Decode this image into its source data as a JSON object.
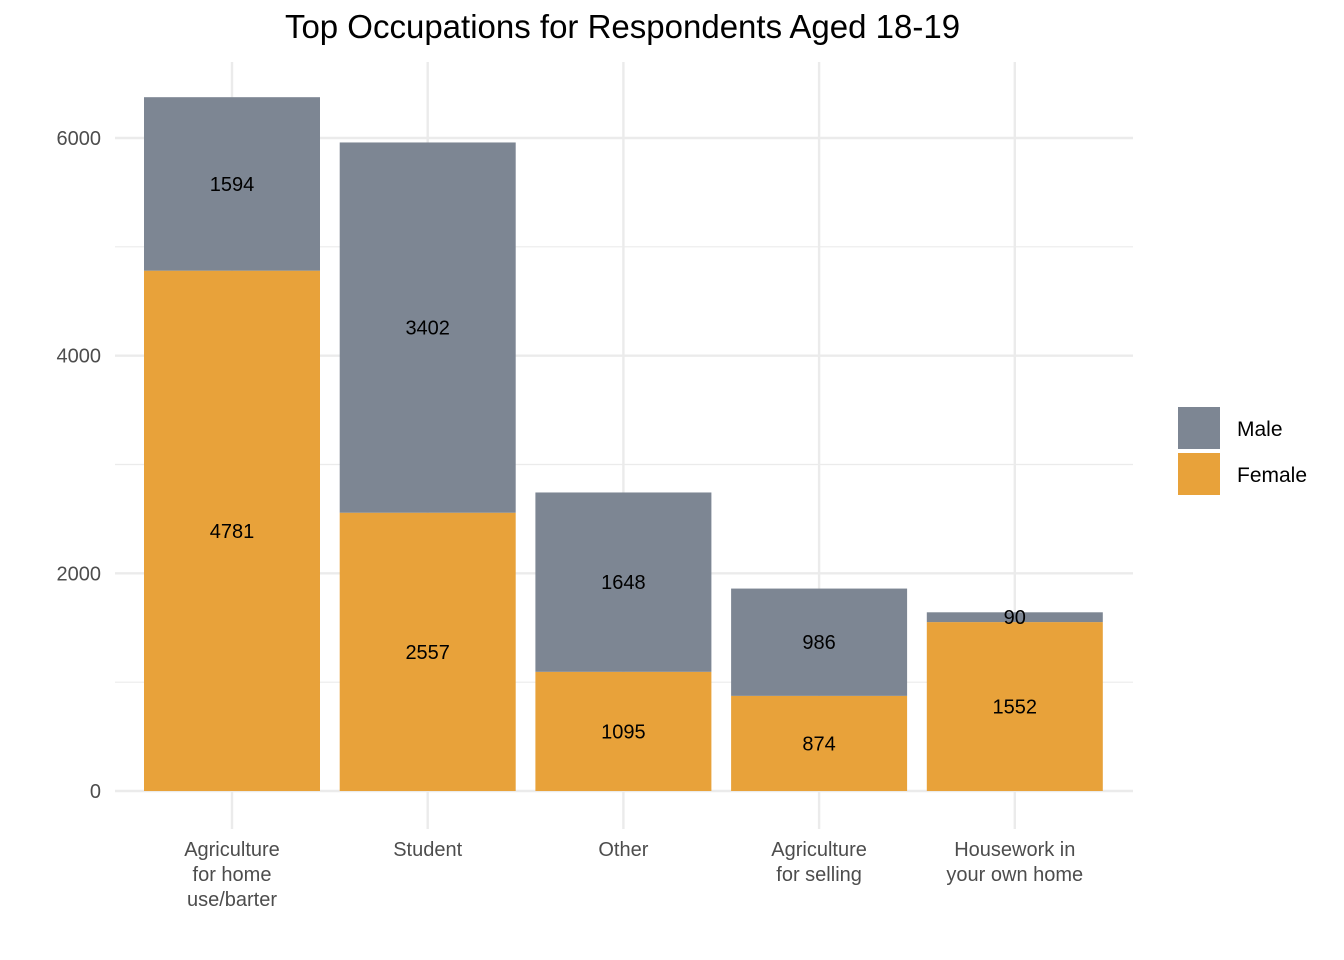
{
  "chart_data": {
    "type": "bar",
    "stacked": true,
    "title": "Top Occupations for Respondents Aged 18-19",
    "xlabel": "",
    "ylabel": "",
    "categories": [
      [
        "Agriculture",
        "for home",
        "use/barter"
      ],
      [
        "Student"
      ],
      [
        "Other"
      ],
      [
        "Agriculture",
        "for selling"
      ],
      [
        "Housework in",
        "your own home"
      ]
    ],
    "series": [
      {
        "name": "Female",
        "color": "#E8A23A",
        "values": [
          4781,
          2557,
          1095,
          874,
          1552
        ]
      },
      {
        "name": "Male",
        "color": "#7D8693",
        "values": [
          1594,
          3402,
          1648,
          986,
          90
        ]
      }
    ],
    "legend_order": [
      "Male",
      "Female"
    ],
    "legend_position": "right",
    "ylim": [
      0,
      6700
    ],
    "yticks": [
      0,
      2000,
      4000,
      6000
    ],
    "yticks_minor": [
      1000,
      3000,
      5000
    ],
    "grid": true,
    "grid_color": "#EBEBEB"
  }
}
